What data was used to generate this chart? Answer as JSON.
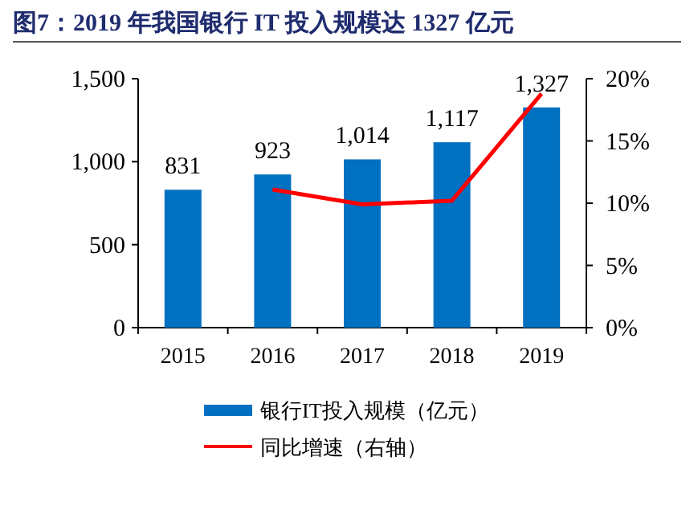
{
  "chart_data": {
    "type": "bar",
    "title": "图7：2019 年我国银行 IT 投入规模达 1327 亿元",
    "categories": [
      "2015",
      "2016",
      "2017",
      "2018",
      "2019"
    ],
    "series": [
      {
        "name": "银行IT投入规模（亿元）",
        "color": "#0070c0",
        "values": [
          831,
          923,
          1014,
          1117,
          1327
        ],
        "value_labels": [
          "831",
          "923",
          "1,014",
          "1,117",
          "1,327"
        ]
      },
      {
        "name": "同比增速（右轴）",
        "type": "line",
        "axis": "y2",
        "color": "#ff0000",
        "values": [
          null,
          11.1,
          9.9,
          10.2,
          18.8
        ]
      }
    ],
    "ylim": [
      0,
      1500
    ],
    "yticks": [
      0,
      {
        "value": 500,
        "label": "500"
      },
      {
        "value": 1000,
        "label": "1,000"
      },
      {
        "value": 1500,
        "label": "1,500"
      }
    ],
    "y2lim": [
      0,
      20
    ],
    "y2ticks": [
      {
        "value": 0,
        "label": "0%"
      },
      {
        "value": 5,
        "label": "5%"
      },
      {
        "value": 10,
        "label": "10%"
      },
      {
        "value": 15,
        "label": "15%"
      },
      {
        "value": 20,
        "label": "20%"
      }
    ],
    "grid": false,
    "legend": "bottom",
    "marker": "none"
  }
}
